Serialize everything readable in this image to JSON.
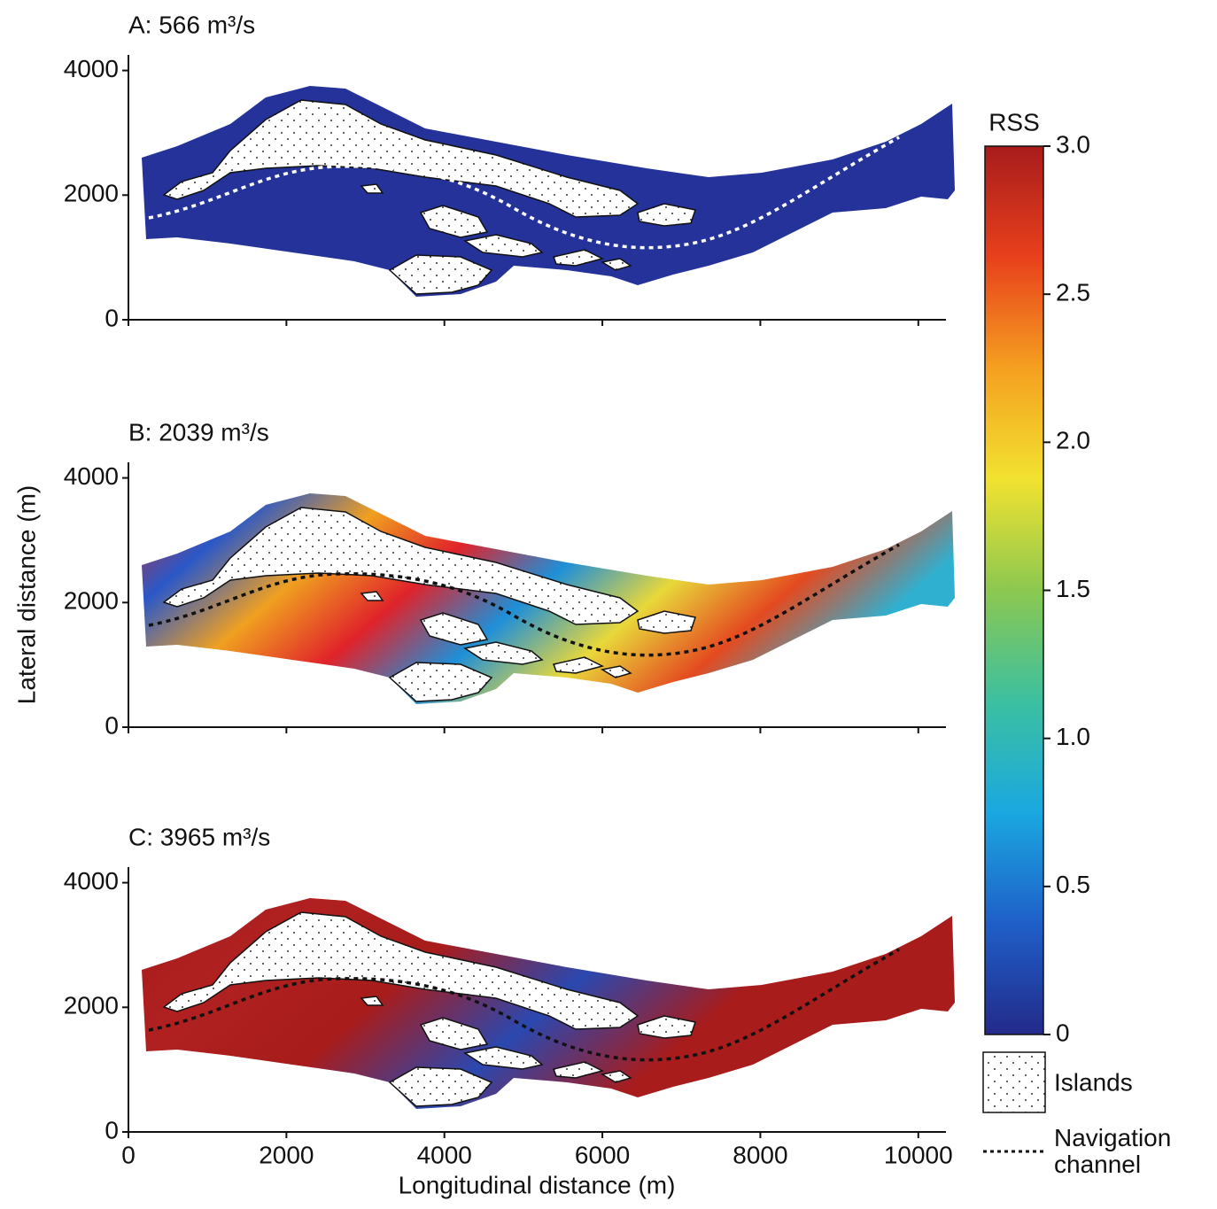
{
  "chart_data": [
    {
      "type": "map",
      "title": "A: 566 m³/s",
      "xlim": [
        0,
        10350
      ],
      "ylim": [
        0,
        4250
      ],
      "xticks": [
        0,
        2000,
        4000,
        6000,
        8000,
        10000
      ],
      "yticks": [
        0,
        2000,
        4000
      ],
      "xtick_labels": false,
      "fill_colors": [
        "#25329a",
        "#25329a"
      ],
      "channel_color": "#ffffff"
    },
    {
      "type": "map",
      "title": "B: 2039 m³/s",
      "y_label": "Lateral distance (m)",
      "xlim": [
        0,
        10350
      ],
      "ylim": [
        0,
        4250
      ],
      "xticks": [
        0,
        2000,
        4000,
        6000,
        8000,
        10000
      ],
      "yticks": [
        0,
        2000,
        4000
      ],
      "xtick_labels": false,
      "fill_colors": [
        "#d62a1f",
        "#2a58c8",
        "#f0a020",
        "#e0232a",
        "#1e8fd8",
        "#e8d83a",
        "#e44a20",
        "#2fb0d0"
      ],
      "channel_color": "#111111"
    },
    {
      "type": "map",
      "title": "C: 3965 m³/s",
      "x_label": "Longitudinal distance (m)",
      "xlim": [
        0,
        10350
      ],
      "ylim": [
        0,
        4250
      ],
      "xticks": [
        0,
        2000,
        4000,
        6000,
        8000,
        10000
      ],
      "yticks": [
        0,
        2000,
        4000
      ],
      "xtick_labels": true,
      "fill_colors": [
        "#a81c1c",
        "#b02020",
        "#a81c1c",
        "#2a48b0",
        "#a81c1c",
        "#a81c1c"
      ],
      "channel_color": "#111111"
    },
    {
      "type": "colorbar",
      "title": "RSS",
      "clim": [
        0,
        3
      ],
      "ticks": [
        0,
        0.5,
        {
          "value": 1,
          "label": "1.0"
        },
        1.5,
        {
          "value": 2,
          "label": "2.0"
        },
        2.5,
        {
          "value": 3,
          "label": "3.0"
        }
      ],
      "colors": [
        "#232a8a",
        "#1f5fc8",
        "#1aa8e0",
        "#3cc0a0",
        "#8cc850",
        "#f2e230",
        "#f5a020",
        "#e8401c",
        "#a81c1c"
      ]
    }
  ],
  "legend": {
    "islands": "Islands",
    "channel": "Navigation channel"
  }
}
